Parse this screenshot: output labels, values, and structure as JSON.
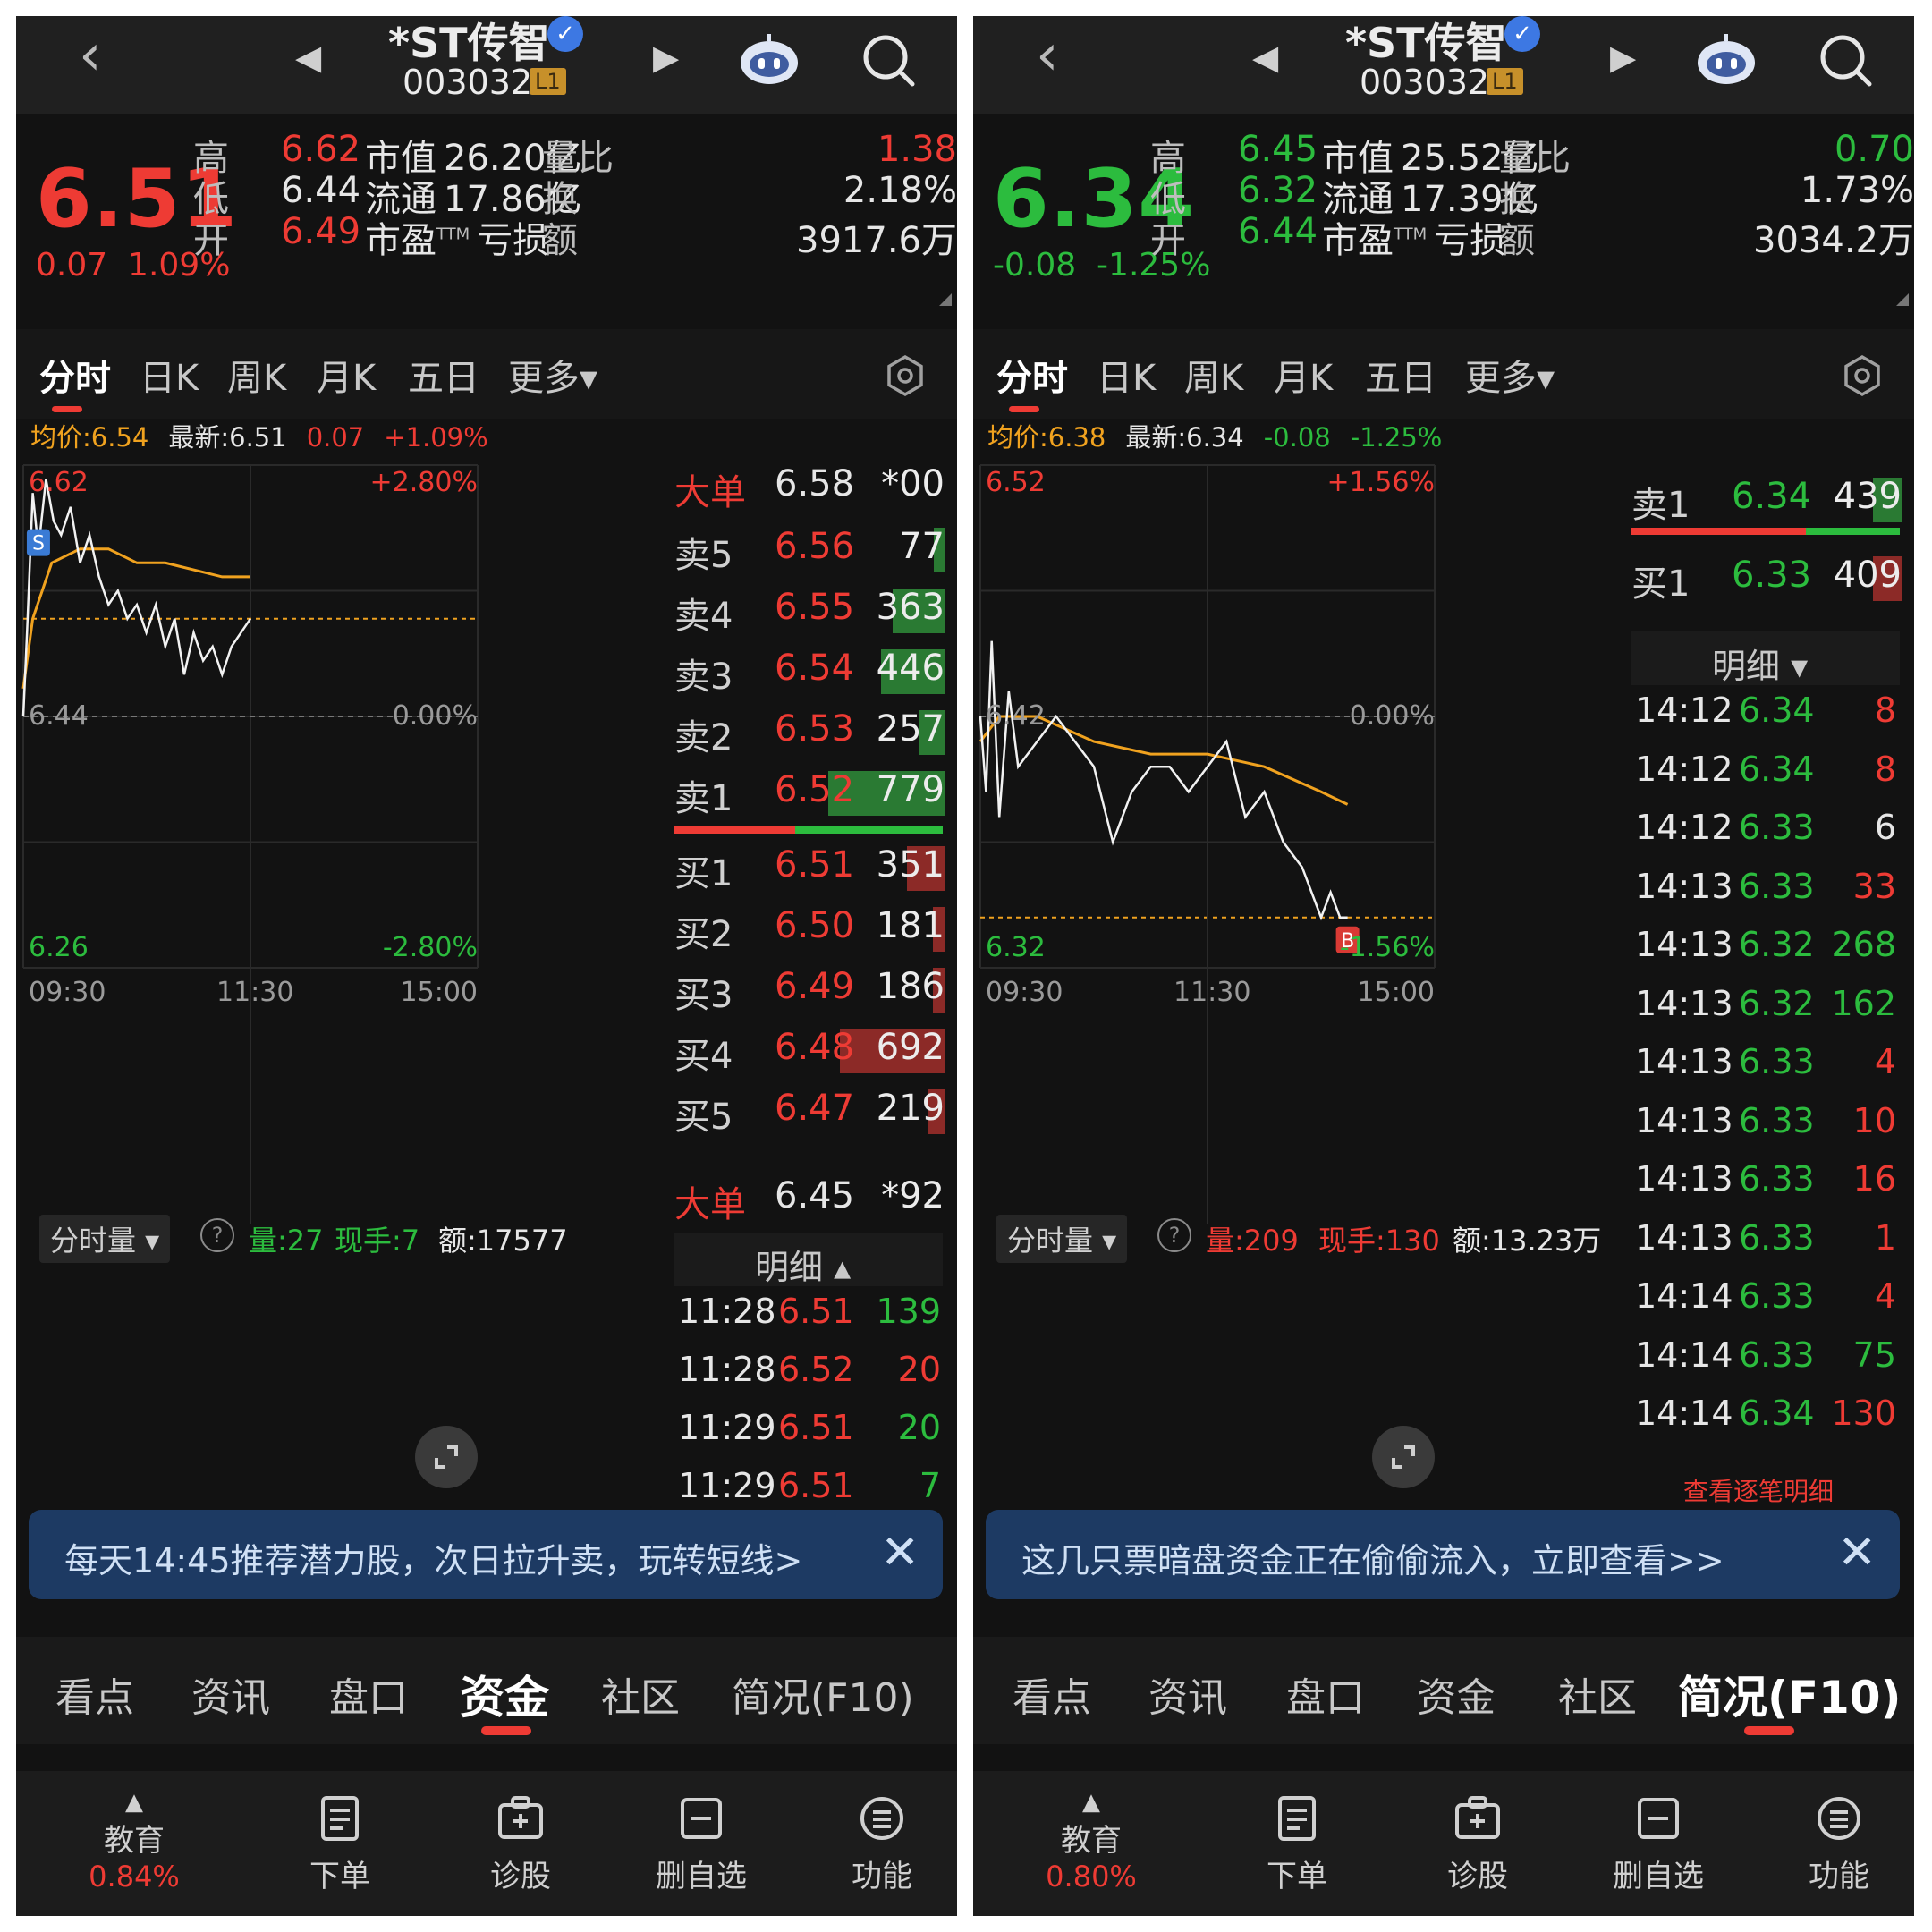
{
  "panels": [
    {
      "header": {
        "name": "*ST传智",
        "code": "003032",
        "level": "L1"
      },
      "quote": {
        "price": "6.51",
        "change": "0.07",
        "change_pct": "1.09%",
        "rows": [
          {
            "l1": "高",
            "v1": "6.62",
            "l2": "市值",
            "v2": "26.20亿",
            "l3": "量比",
            "v3": "1.38"
          },
          {
            "l1": "低",
            "v1": "6.44",
            "l2": "流通",
            "v2": "17.86亿",
            "l3": "换",
            "v3": "2.18%"
          },
          {
            "l1": "开",
            "v1": "6.49",
            "l2": "市盈",
            "tm": "TTM",
            "v2": "亏损",
            "l3": "额",
            "v3": "3917.6万"
          }
        ]
      },
      "tabs": [
        "分时",
        "日K",
        "周K",
        "月K",
        "五日",
        "更多▾"
      ],
      "info": {
        "avg": "均价:6.54",
        "latest": "最新:6.51",
        "chg": "0.07",
        "pct": "+1.09%"
      },
      "axis": {
        "top_price": "6.62",
        "top_pct": "+2.80%",
        "mid_price": "6.44",
        "mid_pct": "0.00%",
        "bot_price": "6.26",
        "bot_pct": "-2.80%",
        "t_start": "09:30",
        "t_mid": "11:30",
        "t_end": "15:00"
      },
      "marker": "S",
      "order_book": {
        "big_sell": {
          "label": "大单",
          "price": "6.58",
          "vol": "*00"
        },
        "asks": [
          {
            "label": "卖5",
            "price": "6.56",
            "vol": "77",
            "fill": 0.04
          },
          {
            "label": "卖4",
            "price": "6.55",
            "vol": "363",
            "fill": 0.45
          },
          {
            "label": "卖3",
            "price": "6.54",
            "vol": "446",
            "fill": 0.55
          },
          {
            "label": "卖2",
            "price": "6.53",
            "vol": "257",
            "fill": 0.22
          },
          {
            "label": "卖1",
            "price": "6.52",
            "vol": "779",
            "fill": 1.0
          }
        ],
        "bids": [
          {
            "label": "买1",
            "price": "6.51",
            "vol": "351",
            "fill": 0.32
          },
          {
            "label": "买2",
            "price": "6.50",
            "vol": "181",
            "fill": 0.1
          },
          {
            "label": "买3",
            "price": "6.49",
            "vol": "186",
            "fill": 0.1
          },
          {
            "label": "买4",
            "price": "6.48",
            "vol": "692",
            "fill": 0.9
          },
          {
            "label": "买5",
            "price": "6.47",
            "vol": "219",
            "fill": 0.14
          }
        ],
        "big_buy": {
          "label": "大单",
          "price": "6.45",
          "vol": "*92"
        },
        "ratio": 0.45
      },
      "detail": {
        "title": "明细 ▴",
        "rows": [
          {
            "t": "11:28",
            "p": "6.51",
            "v": "139",
            "pc": "red",
            "vc": "green"
          },
          {
            "t": "11:28",
            "p": "6.52",
            "v": "20",
            "pc": "red",
            "vc": "red"
          },
          {
            "t": "11:29",
            "p": "6.51",
            "v": "20",
            "pc": "red",
            "vc": "green"
          },
          {
            "t": "11:29",
            "p": "6.51",
            "v": "7",
            "pc": "red",
            "vc": "green"
          }
        ],
        "more": ""
      },
      "volume": {
        "dd": "分时量 ▾",
        "qty": "量:27",
        "hand": "现手:7",
        "amt": "额:17577",
        "max": "7515.00",
        "qty_color": "green"
      },
      "banner": "每天14:45推荐潜力股，次日拉升卖，玩转短线>",
      "bottom_tabs": [
        "看点",
        "资讯",
        "盘口",
        "资金",
        "社区",
        "简况(F10)"
      ],
      "active_bottom": 3,
      "toolbar": {
        "edu": "教育",
        "edu_pct": "0.84%",
        "order": "下单",
        "diag": "诊股",
        "remove": "删自选",
        "func": "功能"
      },
      "colors": {
        "up": "#ee3b34",
        "down": "#2cbc3e",
        "avg": "#f0a21f"
      }
    },
    {
      "header": {
        "name": "*ST传智",
        "code": "003032",
        "level": "L1"
      },
      "quote": {
        "price": "6.34",
        "change": "-0.08",
        "change_pct": "-1.25%",
        "rows": [
          {
            "l1": "高",
            "v1": "6.45",
            "l2": "市值",
            "v2": "25.52亿",
            "l3": "量比",
            "v3": "0.70"
          },
          {
            "l1": "低",
            "v1": "6.32",
            "l2": "流通",
            "v2": "17.39亿",
            "l3": "换",
            "v3": "1.73%"
          },
          {
            "l1": "开",
            "v1": "6.44",
            "l2": "市盈",
            "tm": "TTM",
            "v2": "亏损",
            "l3": "额",
            "v3": "3034.2万"
          }
        ]
      },
      "tabs": [
        "分时",
        "日K",
        "周K",
        "月K",
        "五日",
        "更多▾"
      ],
      "info": {
        "avg": "均价:6.38",
        "latest": "最新:6.34",
        "chg": "-0.08",
        "pct": "-1.25%"
      },
      "axis": {
        "top_price": "6.52",
        "top_pct": "+1.56%",
        "mid_price": "6.42",
        "mid_pct": "0.00%",
        "bot_price": "6.32",
        "bot_pct": "-1.56%",
        "t_start": "09:30",
        "t_mid": "11:30",
        "t_end": "15:00"
      },
      "marker": "B",
      "order_book": {
        "asks": [
          {
            "label": "卖1",
            "price": "6.34",
            "vol": "439",
            "fill": 0.25
          }
        ],
        "bids": [
          {
            "label": "买1",
            "price": "6.33",
            "vol": "409",
            "fill": 0.25
          }
        ],
        "ratio": 0.65
      },
      "detail": {
        "title": "明细 ▾",
        "rows": [
          {
            "t": "14:12",
            "p": "6.34",
            "v": "8",
            "pc": "green",
            "vc": "red"
          },
          {
            "t": "14:12",
            "p": "6.34",
            "v": "8",
            "pc": "green",
            "vc": "red"
          },
          {
            "t": "14:12",
            "p": "6.33",
            "v": "6",
            "pc": "green",
            "vc": "white"
          },
          {
            "t": "14:13",
            "p": "6.33",
            "v": "33",
            "pc": "green",
            "vc": "red"
          },
          {
            "t": "14:13",
            "p": "6.32",
            "v": "268",
            "pc": "green",
            "vc": "green"
          },
          {
            "t": "14:13",
            "p": "6.32",
            "v": "162",
            "pc": "green",
            "vc": "green"
          },
          {
            "t": "14:13",
            "p": "6.33",
            "v": "4",
            "pc": "green",
            "vc": "red"
          },
          {
            "t": "14:13",
            "p": "6.33",
            "v": "10",
            "pc": "green",
            "vc": "red"
          },
          {
            "t": "14:13",
            "p": "6.33",
            "v": "16",
            "pc": "green",
            "vc": "red"
          },
          {
            "t": "14:13",
            "p": "6.33",
            "v": "1",
            "pc": "green",
            "vc": "red"
          },
          {
            "t": "14:14",
            "p": "6.33",
            "v": "4",
            "pc": "green",
            "vc": "red"
          },
          {
            "t": "14:14",
            "p": "6.33",
            "v": "75",
            "pc": "green",
            "vc": "green"
          },
          {
            "t": "14:14",
            "p": "6.34",
            "v": "130",
            "pc": "green",
            "vc": "red"
          }
        ],
        "more": "查看逐笔明细"
      },
      "volume": {
        "dd": "分时量 ▾",
        "qty": "量:209",
        "hand": "现手:130",
        "amt": "额:13.23万",
        "max": "2333.00",
        "qty_color": "red"
      },
      "banner": "这几只票暗盘资金正在偷偷流入，立即查看>>",
      "bottom_tabs": [
        "看点",
        "资讯",
        "盘口",
        "资金",
        "社区",
        "简况(F10)"
      ],
      "active_bottom": 5,
      "toolbar": {
        "edu": "教育",
        "edu_pct": "0.80%",
        "order": "下单",
        "diag": "诊股",
        "remove": "删自选",
        "func": "功能"
      },
      "colors": {
        "up": "#ee3b34",
        "down": "#2cbc3e",
        "avg": "#f0a21f"
      }
    }
  ],
  "chart_data": [
    {
      "type": "line",
      "series": [
        {
          "name": "均价",
          "x": [
            "09:30",
            "09:35",
            "09:45",
            "10:00",
            "10:15",
            "10:30",
            "10:45",
            "11:00",
            "11:15",
            "11:30"
          ],
          "values": [
            6.46,
            6.51,
            6.55,
            6.56,
            6.56,
            6.55,
            6.55,
            6.545,
            6.54,
            6.54
          ]
        },
        {
          "name": "最新",
          "x": [
            "09:30",
            "09:32",
            "09:35",
            "09:38",
            "09:42",
            "09:46",
            "09:50",
            "09:55",
            "10:00",
            "10:05",
            "10:10",
            "10:15",
            "10:20",
            "10:25",
            "10:30",
            "10:35",
            "10:40",
            "10:45",
            "10:50",
            "10:55",
            "11:00",
            "11:05",
            "11:10",
            "11:15",
            "11:20",
            "11:25",
            "11:30"
          ],
          "values": [
            6.44,
            6.5,
            6.6,
            6.56,
            6.61,
            6.58,
            6.57,
            6.59,
            6.55,
            6.57,
            6.54,
            6.52,
            6.53,
            6.51,
            6.52,
            6.5,
            6.52,
            6.49,
            6.51,
            6.47,
            6.5,
            6.48,
            6.49,
            6.47,
            6.49,
            6.5,
            6.51
          ]
        }
      ],
      "ylim": [
        6.26,
        6.62
      ]
    },
    {
      "type": "line",
      "series": [
        {
          "name": "均价",
          "x": [
            "09:30",
            "09:40",
            "10:00",
            "10:30",
            "11:00",
            "11:30",
            "13:30",
            "14:00",
            "14:14"
          ],
          "values": [
            6.41,
            6.42,
            6.42,
            6.41,
            6.405,
            6.405,
            6.4,
            6.39,
            6.385
          ]
        },
        {
          "name": "最新",
          "x": [
            "09:30",
            "09:33",
            "09:36",
            "09:40",
            "09:45",
            "09:50",
            "10:00",
            "10:10",
            "10:20",
            "10:30",
            "10:40",
            "10:50",
            "11:00",
            "11:10",
            "11:20",
            "11:30",
            "13:10",
            "13:20",
            "13:30",
            "13:40",
            "13:50",
            "14:00",
            "14:05",
            "14:10",
            "14:14"
          ],
          "values": [
            6.42,
            6.39,
            6.45,
            6.38,
            6.43,
            6.4,
            6.41,
            6.42,
            6.41,
            6.4,
            6.37,
            6.39,
            6.4,
            6.4,
            6.39,
            6.4,
            6.41,
            6.38,
            6.39,
            6.37,
            6.36,
            6.34,
            6.35,
            6.34,
            6.34
          ]
        }
      ],
      "ylim": [
        6.32,
        6.52
      ]
    }
  ]
}
